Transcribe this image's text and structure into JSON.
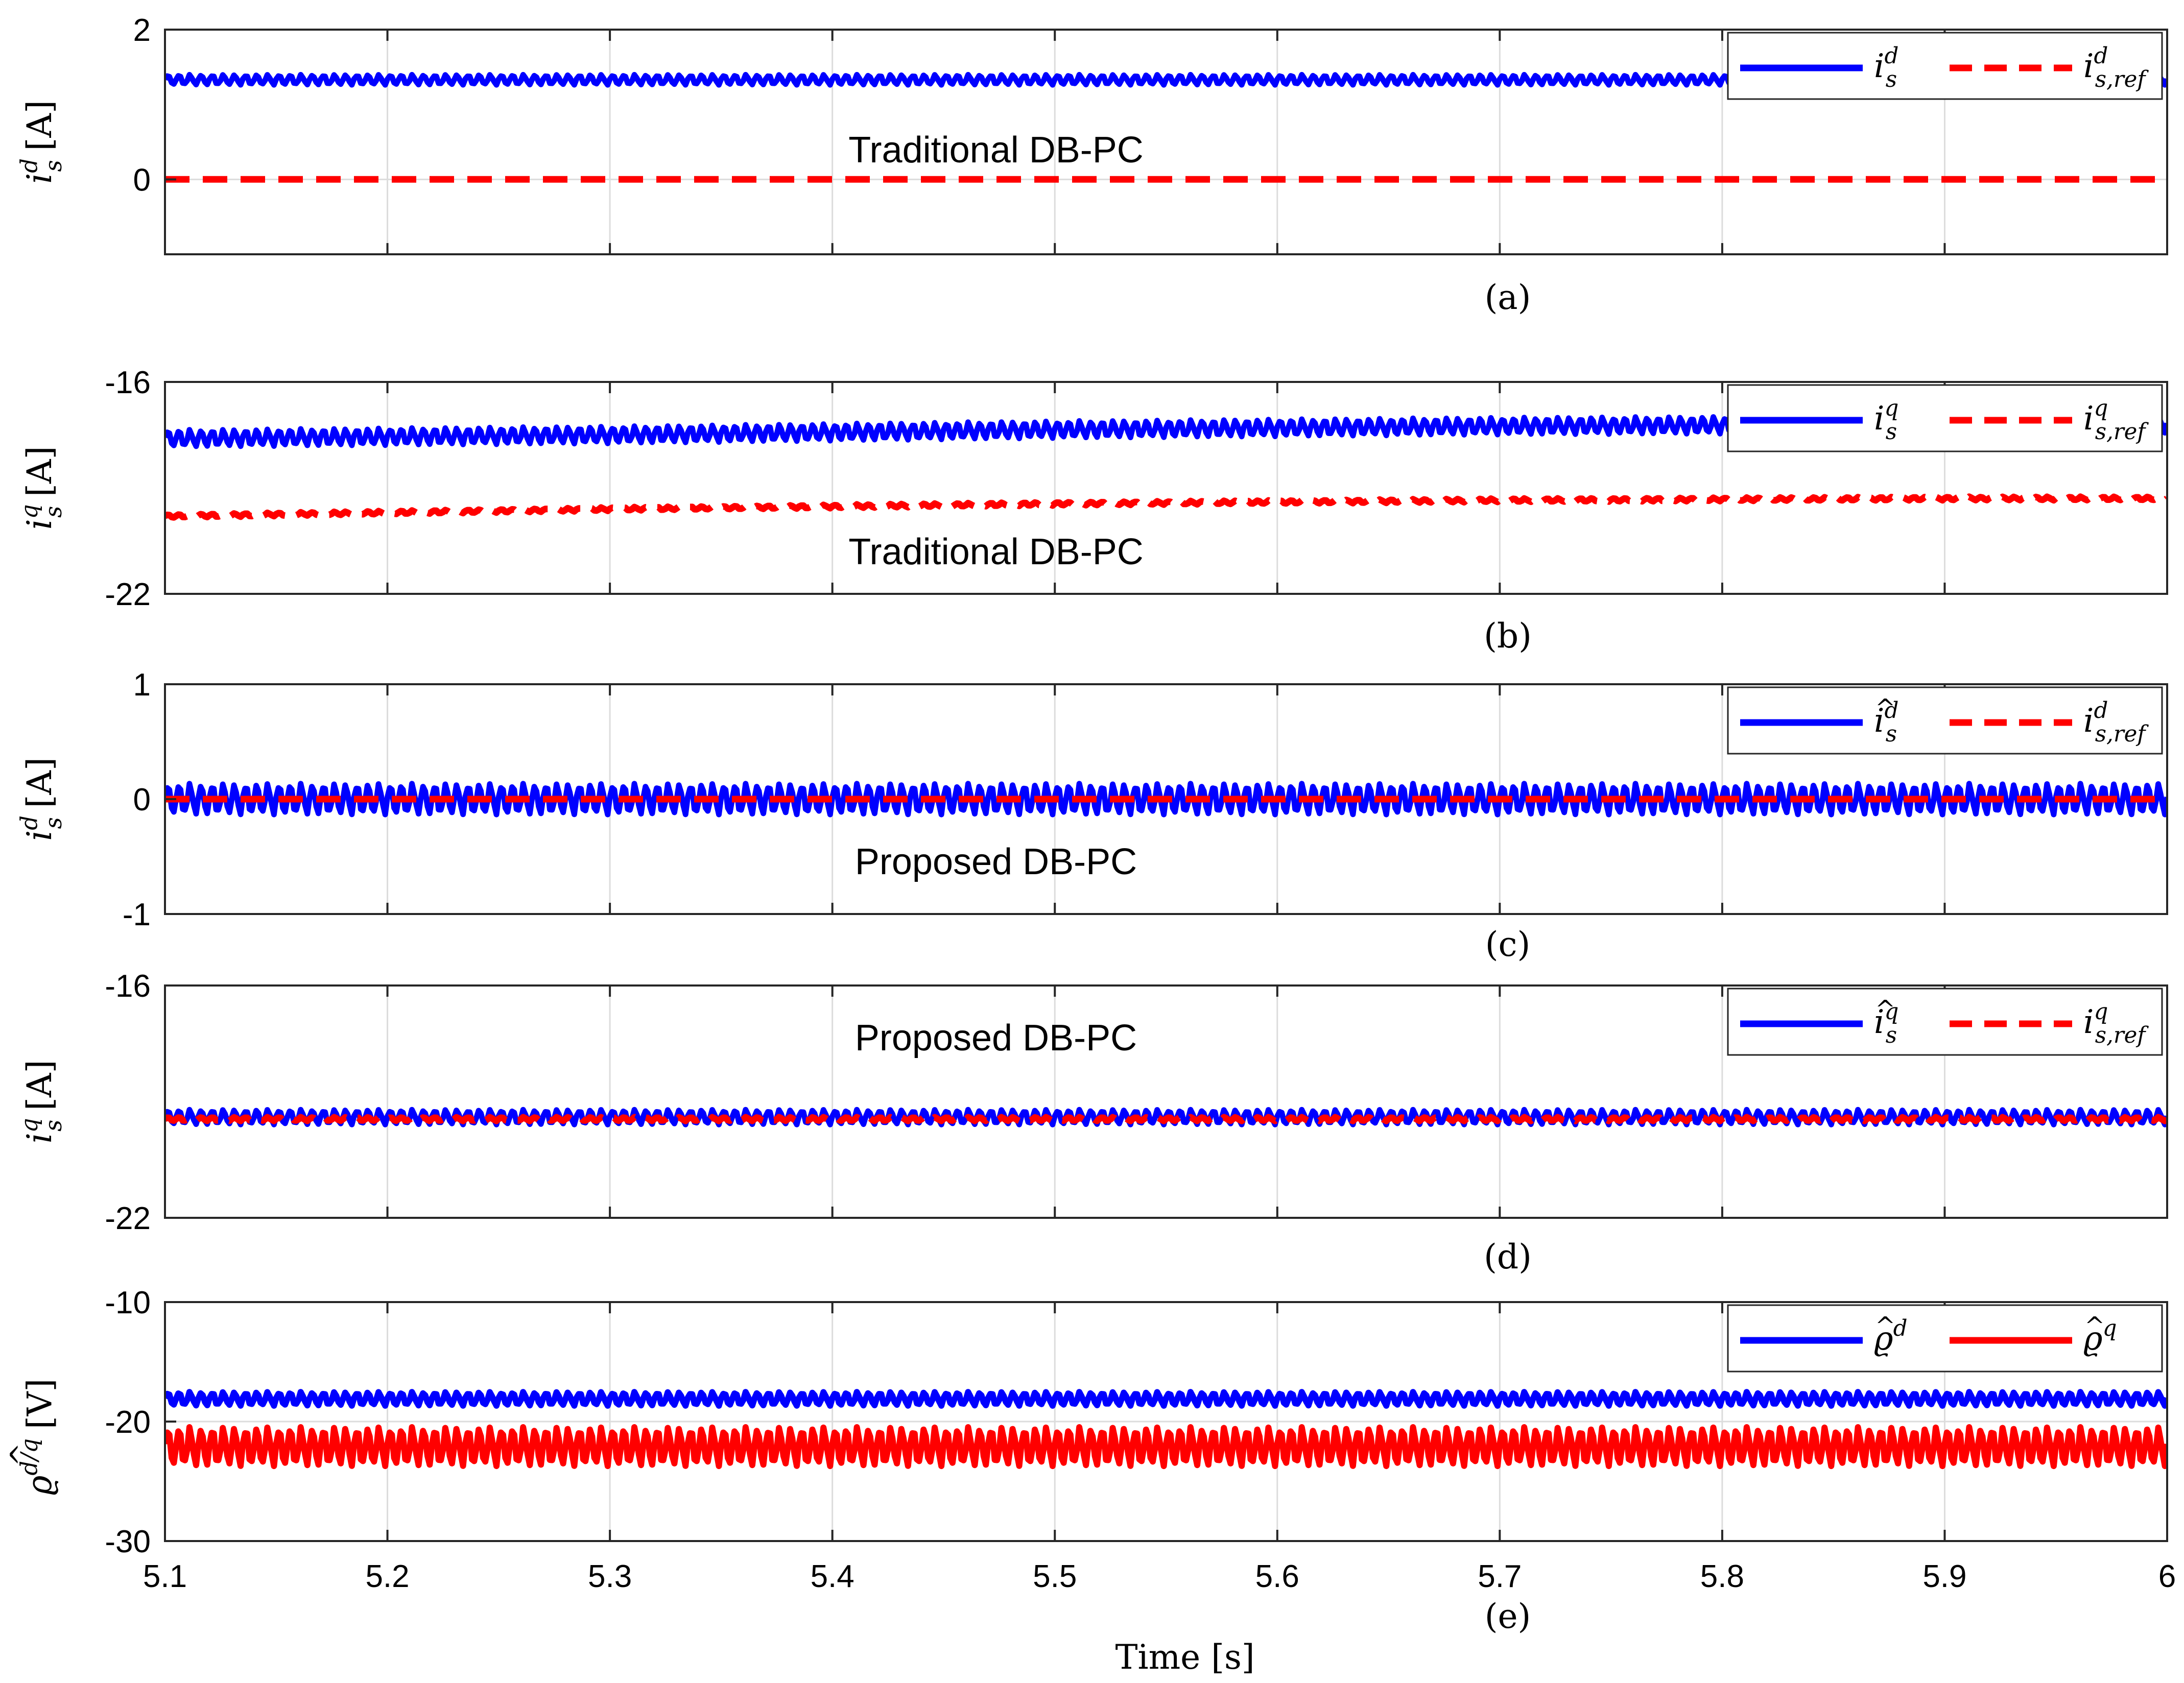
{
  "figure": {
    "xlabel": "Time [s]",
    "xlim": [
      5.1,
      6.0
    ],
    "xticks": [
      "5.1",
      "5.2",
      "5.3",
      "5.4",
      "5.5",
      "5.6",
      "5.7",
      "5.8",
      "5.9",
      "6"
    ]
  },
  "colors": {
    "measured": "#0000ff",
    "reference": "#ff0000",
    "observer_q": "#ff0000"
  },
  "chart_data": [
    {
      "id": "a",
      "type": "line",
      "caption": "(a)",
      "annotation": "Traditional DB-PC",
      "ylabel": {
        "main": "i",
        "sup": "d",
        "sub": "s",
        "unit": "[A]"
      },
      "ylim": [
        -1,
        2
      ],
      "yticks": [
        "2",
        "0"
      ],
      "ytick_values": [
        2,
        0
      ],
      "grid": true,
      "legend": {
        "position": "top-right",
        "entries": [
          {
            "main": "i",
            "sup": "d",
            "sub": "s",
            "hat": false
          },
          {
            "main": "i",
            "sup": "d",
            "sub": "s,ref",
            "hat": false
          }
        ]
      },
      "series": [
        {
          "name": "i_s^d",
          "style": "solid",
          "color": "#0000ff",
          "x": [
            5.1,
            6.0
          ],
          "values": [
            1.33,
            1.33
          ],
          "ripple": 0.07
        },
        {
          "name": "i_s,ref^d",
          "style": "dashed",
          "color": "#ff0000",
          "x": [
            5.1,
            6.0
          ],
          "values": [
            0,
            0
          ],
          "ripple": 0
        }
      ]
    },
    {
      "id": "b",
      "type": "line",
      "caption": "(b)",
      "annotation": "Traditional DB-PC",
      "ylabel": {
        "main": "i",
        "sup": "q",
        "sub": "s",
        "unit": "[A]"
      },
      "ylim": [
        -22,
        -16
      ],
      "yticks": [
        "-16",
        "-22"
      ],
      "ytick_values": [
        -16,
        -22
      ],
      "grid": true,
      "legend": {
        "position": "top-right",
        "entries": [
          {
            "main": "i",
            "sup": "q",
            "sub": "s",
            "hat": false
          },
          {
            "main": "i",
            "sup": "q",
            "sub": "s,ref",
            "hat": false
          }
        ]
      },
      "series": [
        {
          "name": "i_s^q",
          "style": "solid",
          "color": "#0000ff",
          "x": [
            5.1,
            5.3,
            5.5,
            5.7,
            5.9,
            6.0
          ],
          "values": [
            -17.6,
            -17.5,
            -17.35,
            -17.25,
            -17.2,
            -17.2
          ],
          "ripple": 0.25
        },
        {
          "name": "i_s,ref^q",
          "style": "dashed",
          "color": "#ff0000",
          "x": [
            5.1,
            5.3,
            5.5,
            5.7,
            5.9,
            6.0
          ],
          "values": [
            -19.8,
            -19.6,
            -19.45,
            -19.35,
            -19.3,
            -19.3
          ],
          "ripple": 0.05
        }
      ]
    },
    {
      "id": "c",
      "type": "line",
      "caption": "(c)",
      "annotation": "Proposed DB-PC",
      "ylabel": {
        "main": "i",
        "sup": "d",
        "sub": "s",
        "unit": "[A]"
      },
      "ylim": [
        -1,
        1
      ],
      "yticks": [
        "1",
        "0",
        "-1"
      ],
      "ytick_values": [
        1,
        0,
        -1
      ],
      "grid": true,
      "legend": {
        "position": "top-right",
        "entries": [
          {
            "main": "i",
            "sup": "d",
            "sub": "s",
            "hat": true
          },
          {
            "main": "i",
            "sup": "d",
            "sub": "s,ref",
            "hat": false
          }
        ]
      },
      "series": [
        {
          "name": "i_s^d (hat)",
          "style": "solid",
          "color": "#0000ff",
          "x": [
            5.1,
            6.0
          ],
          "values": [
            0,
            0
          ],
          "ripple": 0.14
        },
        {
          "name": "i_s,ref^d",
          "style": "dashed",
          "color": "#ff0000",
          "x": [
            5.1,
            6.0
          ],
          "values": [
            0,
            0
          ],
          "ripple": 0
        }
      ]
    },
    {
      "id": "d",
      "type": "line",
      "caption": "(d)",
      "annotation": "Proposed DB-PC",
      "ylabel": {
        "main": "i",
        "sup": "q",
        "sub": "s",
        "unit": "[A]"
      },
      "ylim": [
        -22,
        -16
      ],
      "yticks": [
        "-16",
        "-22"
      ],
      "ytick_values": [
        -16,
        -22
      ],
      "grid": true,
      "legend": {
        "position": "top-right",
        "entries": [
          {
            "main": "i",
            "sup": "q",
            "sub": "s",
            "hat": true
          },
          {
            "main": "i",
            "sup": "q",
            "sub": "s,ref",
            "hat": false
          }
        ]
      },
      "series": [
        {
          "name": "i_s^q (hat)",
          "style": "solid",
          "color": "#0000ff",
          "x": [
            5.1,
            6.0
          ],
          "values": [
            -19.4,
            -19.4
          ],
          "ripple": 0.2
        },
        {
          "name": "i_s,ref^q",
          "style": "dashed",
          "color": "#ff0000",
          "x": [
            5.1,
            6.0
          ],
          "values": [
            -19.45,
            -19.45
          ],
          "ripple": 0.05
        }
      ]
    },
    {
      "id": "e",
      "type": "line",
      "caption": "(e)",
      "annotation": "",
      "ylabel": {
        "main": "ϱ",
        "sup": "d/q",
        "sub": "",
        "unit": "[V]",
        "hat": true
      },
      "ylim": [
        -30,
        -10
      ],
      "yticks": [
        "-10",
        "-20",
        "-30"
      ],
      "ytick_values": [
        -10,
        -20,
        -30
      ],
      "grid": true,
      "legend": {
        "position": "top-right",
        "entries": [
          {
            "main": "ϱ",
            "sup": "d",
            "sub": "",
            "hat": true
          },
          {
            "main": "ϱ",
            "sup": "q",
            "sub": "",
            "hat": true
          }
        ]
      },
      "series": [
        {
          "name": "rho_d (hat)",
          "style": "solid",
          "color": "#0000ff",
          "x": [
            5.1,
            6.0
          ],
          "values": [
            -18.1,
            -18.1
          ],
          "ripple": 0.6
        },
        {
          "name": "rho_q (hat)",
          "style": "solid",
          "color": "#ff0000",
          "x": [
            5.1,
            6.0
          ],
          "values": [
            -22.1,
            -22.1
          ],
          "ripple": 1.7
        }
      ]
    }
  ]
}
